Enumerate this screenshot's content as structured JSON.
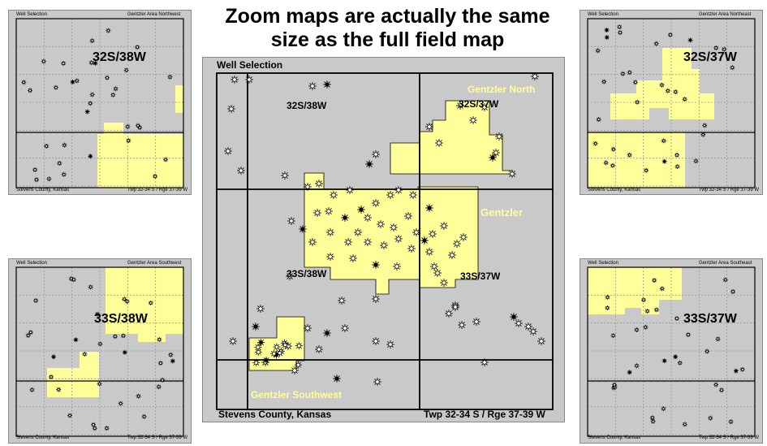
{
  "headline": "Zoom maps are actually the same size as the full field map",
  "main_map": {
    "title": "Well Selection",
    "township_labels": [
      "32S/38W",
      "32S/37W",
      "33S/38W",
      "33S/37W"
    ],
    "field_labels": [
      "Gentzler North",
      "Gentzler",
      "Gentzler Southwest"
    ],
    "footer_left": "Stevens County, Kansas",
    "footer_right": "Twp 32-34 S / Rge 37-39 W"
  },
  "zoom_maps": [
    {
      "title_left": "Well Selection",
      "title_right": "Gentzler Area Northwest",
      "township": "32S/38W",
      "footer_left": "Stevens County, Kansas",
      "footer_right": "Twp 32-34 S / Rge 37-39 W"
    },
    {
      "title_left": "Well Selection",
      "title_right": "Gentzler Area Northeast",
      "township": "32S/37W",
      "footer_left": "Stevens County, Kansas",
      "footer_right": "Twp 32-34 S / Rge 37-39 W"
    },
    {
      "title_left": "Well Selection",
      "title_right": "Gentzler Area Southwest",
      "township": "33S/38W",
      "footer_left": "Stevens County, Kansas",
      "footer_right": "Twp 32-34 S / Rge 37-39 W"
    },
    {
      "title_left": "Well Selection",
      "title_right": "Gentzler Area Southeast",
      "township": "33S/37W",
      "footer_left": "Stevens County, Kansas",
      "footer_right": "Twp 32-34 S / Rge 37-39 W"
    }
  ],
  "colors": {
    "background": "#c9c9c9",
    "field": "#ffff99",
    "grid": "#999999",
    "line": "#000000"
  },
  "icons": [
    "well-symbol-icon",
    "dry-hole-icon",
    "oil-well-icon"
  ]
}
